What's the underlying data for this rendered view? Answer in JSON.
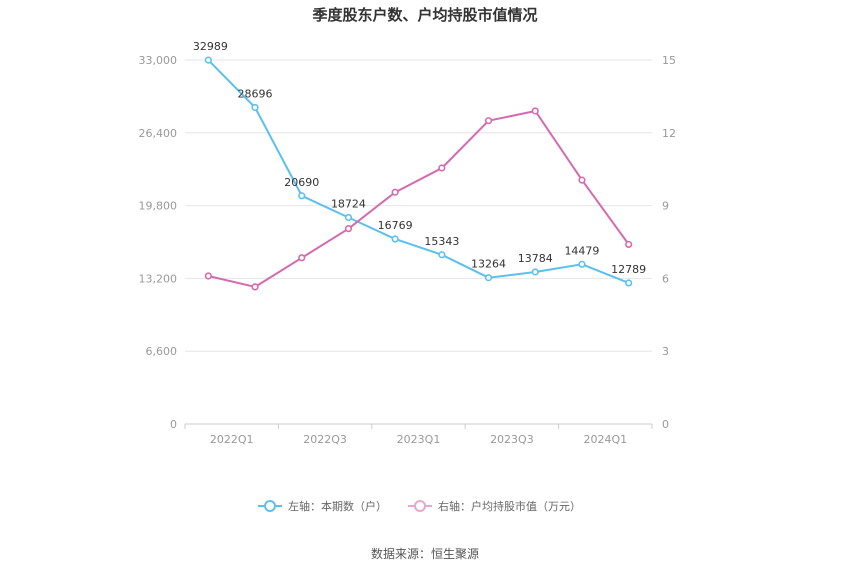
{
  "chart_data": {
    "type": "line",
    "title": "季度股东户数、户均持股市值情况",
    "x": [
      "2022Q1",
      "2022Q2",
      "2022Q3",
      "2022Q4",
      "2023Q1",
      "2023Q2",
      "2023Q3",
      "2023Q4",
      "2024Q1",
      "2024Q2"
    ],
    "x_tick_labels": [
      "2022Q1",
      "2022Q3",
      "2023Q1",
      "2023Q3",
      "2024Q1"
    ],
    "left_axis": {
      "ylim": [
        0,
        33000
      ],
      "ticks": [
        "0",
        "6,600",
        "13,200",
        "19,800",
        "26,400",
        "33,000"
      ]
    },
    "right_axis": {
      "ylim": [
        0,
        15
      ],
      "ticks": [
        "0",
        "3",
        "6",
        "9",
        "12",
        "15"
      ]
    },
    "series": [
      {
        "name": "左轴：本期数（户）",
        "axis": "left",
        "color": "#5bc0ee",
        "values": [
          32989,
          28696,
          20690,
          18724,
          16769,
          15343,
          13264,
          13784,
          14479,
          12789
        ],
        "labels": [
          "32989",
          "28696",
          "20690",
          "18724",
          "16769",
          "15343",
          "13264",
          "13784",
          "14479",
          "12789"
        ]
      },
      {
        "name": "右轴：户均持股市值（万元）",
        "axis": "right",
        "color": "#d56aae",
        "values": [
          6.1,
          5.65,
          6.85,
          8.05,
          9.55,
          10.55,
          12.5,
          12.9,
          10.05,
          7.4
        ]
      }
    ],
    "grid": true,
    "legend": "bottom-center"
  },
  "footer": {
    "source": "数据来源：恒生聚源"
  }
}
